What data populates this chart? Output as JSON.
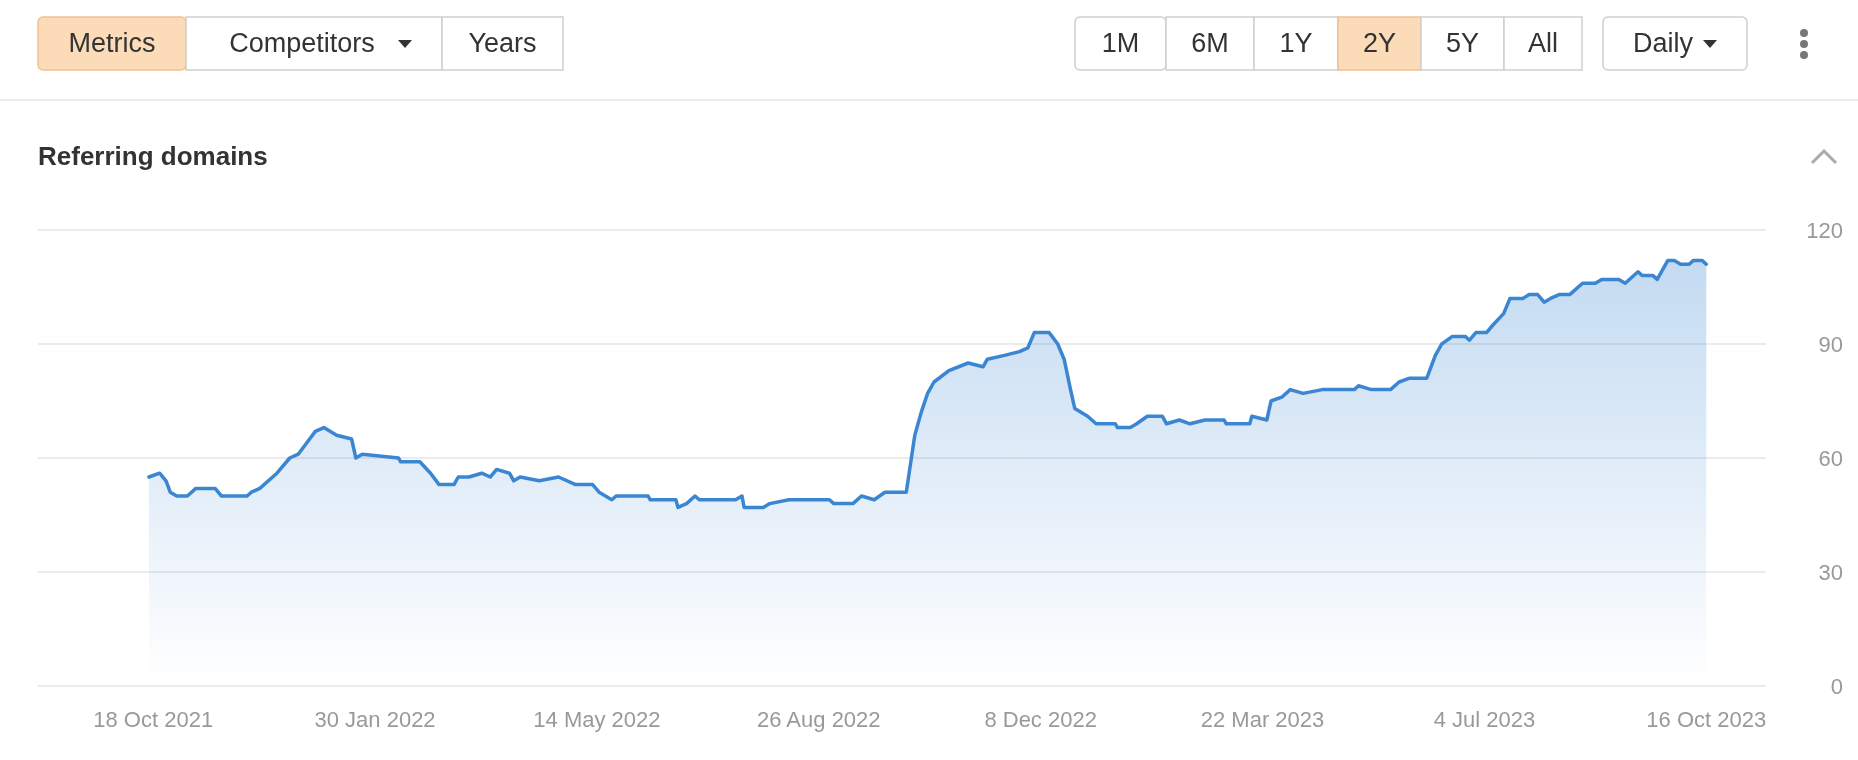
{
  "chart_data": {
    "type": "area",
    "title": "Referring domains",
    "color": "#3a86d2",
    "x": [
      "2021-10-16",
      "2021-10-21",
      "2021-10-24",
      "2021-10-26",
      "2021-10-29",
      "2021-11-03",
      "2021-11-07",
      "2021-11-16",
      "2021-11-19",
      "2021-12-01",
      "2021-12-03",
      "2021-12-07",
      "2021-12-11",
      "2021-12-15",
      "2021-12-21",
      "2021-12-25",
      "2021-12-29",
      "2022-01-02",
      "2022-01-06",
      "2022-01-12",
      "2022-01-19",
      "2022-01-21",
      "2022-01-24",
      "2022-02-10",
      "2022-02-11",
      "2022-02-20",
      "2022-02-25",
      "2022-03-01",
      "2022-03-08",
      "2022-03-10",
      "2022-03-15",
      "2022-03-21",
      "2022-03-25",
      "2022-03-28",
      "2022-04-03",
      "2022-04-05",
      "2022-04-08",
      "2022-04-17",
      "2022-04-26",
      "2022-05-04",
      "2022-05-12",
      "2022-05-15",
      "2022-05-21",
      "2022-05-23",
      "2022-06-07",
      "2022-06-08",
      "2022-06-20",
      "2022-06-21",
      "2022-06-25",
      "2022-06-29",
      "2022-07-01",
      "2022-07-18",
      "2022-07-21",
      "2022-07-22",
      "2022-07-31",
      "2022-08-03",
      "2022-08-12",
      "2022-08-31",
      "2022-09-02",
      "2022-09-11",
      "2022-09-15",
      "2022-09-21",
      "2022-09-26",
      "2022-10-06",
      "2022-10-10",
      "2022-10-13",
      "2022-10-16",
      "2022-10-19",
      "2022-10-26",
      "2022-11-04",
      "2022-11-11",
      "2022-11-13",
      "2022-11-21",
      "2022-11-28",
      "2022-12-02",
      "2022-12-05",
      "2022-12-12",
      "2022-12-16",
      "2022-12-19",
      "2022-12-22",
      "2022-12-24",
      "2022-12-30",
      "2023-01-03",
      "2023-01-12",
      "2023-01-13",
      "2023-01-19",
      "2023-01-22",
      "2023-01-27",
      "2023-02-03",
      "2023-02-05",
      "2023-02-11",
      "2023-02-16",
      "2023-02-23",
      "2023-03-04",
      "2023-03-05",
      "2023-03-16",
      "2023-03-17",
      "2023-03-24",
      "2023-03-26",
      "2023-03-31",
      "2023-04-04",
      "2023-04-10",
      "2023-04-19",
      "2023-05-04",
      "2023-05-06",
      "2023-05-12",
      "2023-05-21",
      "2023-05-25",
      "2023-05-30",
      "2023-06-07",
      "2023-06-11",
      "2023-06-14",
      "2023-06-19",
      "2023-06-25",
      "2023-06-27",
      "2023-06-30",
      "2023-07-05",
      "2023-07-08",
      "2023-07-13",
      "2023-07-16",
      "2023-07-22",
      "2023-07-25",
      "2023-07-29",
      "2023-08-01",
      "2023-08-04",
      "2023-08-08",
      "2023-08-13",
      "2023-08-19",
      "2023-08-25",
      "2023-08-28",
      "2023-09-05",
      "2023-09-08",
      "2023-09-14",
      "2023-09-16",
      "2023-09-21",
      "2023-09-23",
      "2023-09-28",
      "2023-10-01",
      "2023-10-04",
      "2023-10-08",
      "2023-10-10",
      "2023-10-14",
      "2023-10-16"
    ],
    "values": [
      55,
      56,
      54,
      51,
      50,
      50,
      52,
      52,
      50,
      50,
      51,
      52,
      54,
      56,
      60,
      61,
      64,
      67,
      68,
      66,
      65,
      60,
      61,
      60,
      59,
      59,
      56,
      53,
      53,
      55,
      55,
      56,
      55,
      57,
      56,
      54,
      55,
      54,
      55,
      53,
      53,
      51,
      49,
      50,
      50,
      49,
      49,
      47,
      48,
      50,
      49,
      49,
      50,
      47,
      47,
      48,
      49,
      49,
      48,
      48,
      50,
      49,
      51,
      51,
      66,
      72,
      77,
      80,
      83,
      85,
      84,
      86,
      87,
      88,
      89,
      93,
      93,
      90,
      86,
      78,
      73,
      71,
      69,
      69,
      68,
      68,
      69,
      71,
      71,
      69,
      70,
      69,
      70,
      70,
      69,
      69,
      71,
      70,
      75,
      76,
      78,
      77,
      78,
      78,
      79,
      78,
      78,
      80,
      81,
      81,
      87,
      90,
      92,
      92,
      91,
      93,
      93,
      95,
      98,
      102,
      102,
      103,
      103,
      101,
      102,
      103,
      103,
      106,
      106,
      107,
      107,
      106,
      109,
      108,
      108,
      107,
      112,
      112,
      111,
      111,
      112,
      112,
      111
    ],
    "xlim": [
      "2021-08-25",
      "2023-11-13"
    ],
    "xticks": [
      {
        "value": "2021-10-18",
        "label": "18 Oct 2021"
      },
      {
        "value": "2022-01-30",
        "label": "30 Jan 2022"
      },
      {
        "value": "2022-05-14",
        "label": "14 May 2022"
      },
      {
        "value": "2022-08-26",
        "label": "26 Aug 2022"
      },
      {
        "value": "2022-12-08",
        "label": "8 Dec 2022"
      },
      {
        "value": "2023-03-22",
        "label": "22 Mar 2023"
      },
      {
        "value": "2023-07-04",
        "label": "4 Jul 2023"
      },
      {
        "value": "2023-10-16",
        "label": "16 Oct 2023"
      }
    ],
    "ylim": [
      0,
      120
    ],
    "yticks": [
      0,
      30,
      60,
      90,
      120
    ],
    "grid": "y",
    "annotations": [
      "Metrics",
      "Competitors",
      "Years",
      "1M",
      "6M",
      "1Y",
      "2Y",
      "5Y",
      "All",
      "Daily"
    ]
  }
}
